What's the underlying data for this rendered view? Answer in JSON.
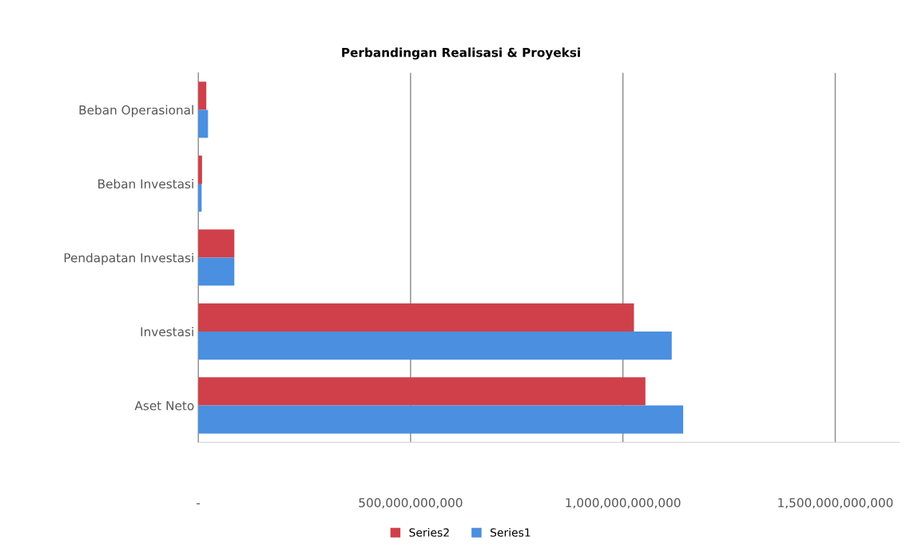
{
  "chart_data": {
    "type": "bar",
    "orientation": "horizontal",
    "title": "Perbandingan Realisasi & Proyeksi",
    "categories": [
      "Beban Operasional",
      "Beban Investasi",
      "Pendapatan Investasi",
      "Investasi",
      "Aset Neto"
    ],
    "series": [
      {
        "name": "Series2",
        "color": "#d0404a",
        "values": [
          19000000000,
          9000000000,
          85000000000,
          1026000000000,
          1053000000000
        ]
      },
      {
        "name": "Series1",
        "color": "#4a8fe0",
        "values": [
          23000000000,
          8000000000,
          85000000000,
          1115000000000,
          1142000000000
        ]
      }
    ],
    "xlim": [
      0,
      1650000000000
    ],
    "xticks": [
      {
        "value": 0,
        "label": "-"
      },
      {
        "value": 500000000000,
        "label": "500,000,000,000"
      },
      {
        "value": 1000000000000,
        "label": "1,000,000,000,000"
      },
      {
        "value": 1500000000000,
        "label": "1,500,000,000,000"
      }
    ],
    "grid": "x",
    "legend": "bottom"
  }
}
